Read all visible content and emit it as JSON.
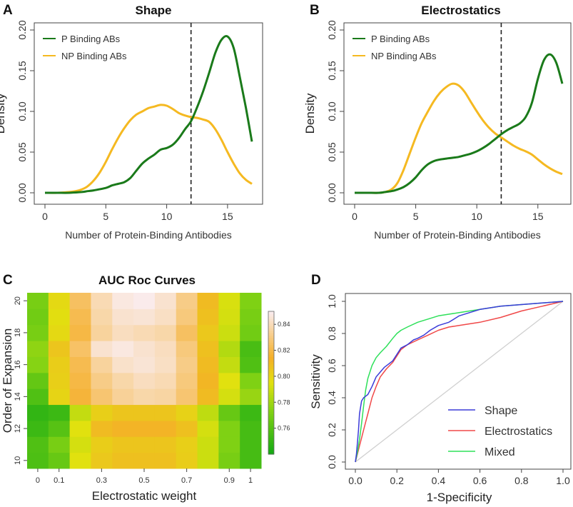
{
  "figure": {
    "panels": {
      "A": {
        "letter": "A",
        "title": "Shape"
      },
      "B": {
        "letter": "B",
        "title": "Electrostatics"
      },
      "C": {
        "letter": "C",
        "title": "AUC Roc Curves"
      },
      "D": {
        "letter": "D",
        "title": ""
      }
    }
  },
  "colors": {
    "p_binding": "#1a7a1a",
    "np_binding": "#f5b921",
    "shape": "#3b3bd9",
    "electrostatics": "#f04848",
    "mixed": "#2ee05a",
    "diagonal": "#d0d0d0"
  },
  "chart_data": [
    {
      "id": "A",
      "type": "line",
      "title": "Shape",
      "xlabel": "Number of Protein-Binding Antibodies",
      "ylabel": "Density",
      "xlim": [
        0,
        17
      ],
      "ylim": [
        0,
        0.2
      ],
      "xticks": [
        "0",
        "5",
        "10",
        "15"
      ],
      "yticks": [
        "0.00",
        "0.05",
        "0.10",
        "0.15",
        "0.20"
      ],
      "vline": 12,
      "legend": [
        "P Binding ABs",
        "NP Binding ABs"
      ],
      "series": [
        {
          "name": "P Binding ABs",
          "x": [
            0,
            1,
            2,
            3,
            3.5,
            4,
            5,
            5.5,
            6,
            6.5,
            7,
            7.5,
            8,
            8.5,
            9,
            9.5,
            10,
            10.5,
            11,
            11.5,
            12,
            12.5,
            13,
            13.5,
            14,
            14.5,
            15,
            15.5,
            16,
            16.5,
            17
          ],
          "y": [
            0,
            0,
            0,
            0.001,
            0.002,
            0.003,
            0.006,
            0.009,
            0.011,
            0.013,
            0.018,
            0.027,
            0.036,
            0.042,
            0.047,
            0.053,
            0.055,
            0.059,
            0.067,
            0.078,
            0.088,
            0.105,
            0.125,
            0.148,
            0.172,
            0.188,
            0.192,
            0.178,
            0.143,
            0.105,
            0.063
          ]
        },
        {
          "name": "NP Binding ABs",
          "x": [
            0,
            1,
            2,
            2.5,
            3,
            3.5,
            4,
            4.5,
            5,
            5.5,
            6,
            6.5,
            7,
            7.5,
            8,
            8.5,
            9,
            9.5,
            10,
            10.5,
            11,
            11.5,
            12,
            12.5,
            13,
            13.5,
            14,
            14.5,
            15,
            15.5,
            16,
            16.5,
            17
          ],
          "y": [
            0,
            0,
            0.001,
            0.002,
            0.004,
            0.008,
            0.015,
            0.025,
            0.038,
            0.053,
            0.067,
            0.079,
            0.089,
            0.096,
            0.1,
            0.104,
            0.106,
            0.108,
            0.107,
            0.103,
            0.098,
            0.095,
            0.093,
            0.092,
            0.09,
            0.087,
            0.078,
            0.065,
            0.05,
            0.036,
            0.024,
            0.016,
            0.011
          ]
        }
      ]
    },
    {
      "id": "B",
      "type": "line",
      "title": "Electrostatics",
      "xlabel": "Number of Protein-Binding Antibodies",
      "ylabel": "Density",
      "xlim": [
        0,
        17
      ],
      "ylim": [
        0,
        0.2
      ],
      "xticks": [
        "0",
        "5",
        "10",
        "15"
      ],
      "yticks": [
        "0.00",
        "0.05",
        "0.10",
        "0.15",
        "0.20"
      ],
      "vline": 12,
      "legend": [
        "P Binding ABs",
        "NP Binding ABs"
      ],
      "series": [
        {
          "name": "P Binding ABs",
          "x": [
            0,
            1,
            2,
            2.5,
            3,
            3.5,
            4,
            4.5,
            5,
            5.5,
            6,
            6.5,
            7,
            7.5,
            8,
            8.5,
            9,
            9.5,
            10,
            10.5,
            11,
            11.5,
            12,
            12.5,
            13,
            13.5,
            14,
            14.5,
            15,
            15.5,
            16,
            16.5,
            17
          ],
          "y": [
            0,
            0,
            0,
            0.001,
            0.002,
            0.004,
            0.007,
            0.012,
            0.019,
            0.028,
            0.035,
            0.039,
            0.041,
            0.042,
            0.043,
            0.044,
            0.046,
            0.048,
            0.051,
            0.055,
            0.06,
            0.066,
            0.072,
            0.077,
            0.081,
            0.085,
            0.093,
            0.11,
            0.14,
            0.163,
            0.17,
            0.16,
            0.134
          ]
        },
        {
          "name": "NP Binding ABs",
          "x": [
            0,
            1,
            2,
            2.5,
            3,
            3.5,
            4,
            4.5,
            5,
            5.5,
            6,
            6.5,
            7,
            7.5,
            8,
            8.5,
            9,
            9.5,
            10,
            10.5,
            11,
            11.5,
            12,
            12.5,
            13,
            13.5,
            14,
            14.5,
            15,
            15.5,
            16,
            16.5,
            17
          ],
          "y": [
            0,
            0,
            0,
            0.001,
            0.004,
            0.012,
            0.028,
            0.048,
            0.068,
            0.086,
            0.1,
            0.113,
            0.123,
            0.13,
            0.134,
            0.132,
            0.124,
            0.112,
            0.1,
            0.089,
            0.08,
            0.073,
            0.068,
            0.063,
            0.058,
            0.054,
            0.051,
            0.047,
            0.041,
            0.035,
            0.03,
            0.026,
            0.023
          ]
        }
      ]
    },
    {
      "id": "C",
      "type": "heatmap",
      "title": "AUC Roc Curves",
      "xlabel": "Electrostatic weight",
      "ylabel": "Order of Expansion",
      "xticks": [
        "0",
        "0.1",
        "0.3",
        "0.5",
        "0.7",
        "0.9",
        "1"
      ],
      "yticks": [
        "10",
        "12",
        "14",
        "16",
        "18",
        "20"
      ],
      "colorbar_ticks": [
        "0.76",
        "0.78",
        "0.80",
        "0.82",
        "0.84"
      ],
      "clim": [
        0.74,
        0.85
      ],
      "x_values": [
        0,
        0.1,
        0.2,
        0.3,
        0.4,
        0.5,
        0.6,
        0.7,
        0.8,
        0.9,
        1
      ],
      "y_values": [
        10,
        11,
        12,
        13,
        14,
        15,
        16,
        17,
        18,
        19,
        20
      ],
      "values": [
        [
          0.757,
          0.765,
          0.795,
          0.805,
          0.808,
          0.808,
          0.808,
          0.803,
          0.79,
          0.77,
          0.755
        ],
        [
          0.758,
          0.77,
          0.792,
          0.803,
          0.806,
          0.806,
          0.806,
          0.802,
          0.79,
          0.772,
          0.755
        ],
        [
          0.752,
          0.76,
          0.795,
          0.81,
          0.813,
          0.813,
          0.813,
          0.808,
          0.792,
          0.772,
          0.755
        ],
        [
          0.749,
          0.752,
          0.788,
          0.802,
          0.806,
          0.806,
          0.806,
          0.801,
          0.787,
          0.765,
          0.752
        ],
        [
          0.758,
          0.8,
          0.818,
          0.828,
          0.835,
          0.838,
          0.837,
          0.828,
          0.81,
          0.792,
          0.778
        ],
        [
          0.764,
          0.802,
          0.82,
          0.832,
          0.838,
          0.842,
          0.84,
          0.83,
          0.812,
          0.795,
          0.772
        ],
        [
          0.774,
          0.803,
          0.822,
          0.836,
          0.844,
          0.846,
          0.843,
          0.832,
          0.81,
          0.788,
          0.758
        ],
        [
          0.776,
          0.806,
          0.826,
          0.845,
          0.848,
          0.845,
          0.842,
          0.83,
          0.808,
          0.784,
          0.756
        ],
        [
          0.77,
          0.798,
          0.82,
          0.836,
          0.842,
          0.84,
          0.838,
          0.825,
          0.805,
          0.79,
          0.768
        ],
        [
          0.768,
          0.796,
          0.822,
          0.838,
          0.845,
          0.846,
          0.843,
          0.83,
          0.808,
          0.792,
          0.77
        ],
        [
          0.77,
          0.798,
          0.825,
          0.84,
          0.848,
          0.85,
          0.845,
          0.832,
          0.81,
          0.793,
          0.772
        ]
      ]
    },
    {
      "id": "D",
      "type": "line",
      "title": "",
      "xlabel": "1-Specificity",
      "ylabel": "Sensitivity",
      "xlim": [
        0,
        1
      ],
      "ylim": [
        0,
        1
      ],
      "xticks": [
        "0.0",
        "0.2",
        "0.4",
        "0.6",
        "0.8",
        "1.0"
      ],
      "yticks": [
        "0.0",
        "0.2",
        "0.4",
        "0.6",
        "0.8",
        "1.0"
      ],
      "legend": [
        "Shape",
        "Electrostatics",
        "Mixed"
      ],
      "series": [
        {
          "name": "Shape",
          "x": [
            0,
            0.005,
            0.01,
            0.015,
            0.02,
            0.03,
            0.04,
            0.05,
            0.06,
            0.08,
            0.1,
            0.12,
            0.14,
            0.16,
            0.18,
            0.2,
            0.22,
            0.25,
            0.28,
            0.3,
            0.33,
            0.36,
            0.4,
            0.45,
            0.5,
            0.55,
            0.6,
            0.7,
            0.8,
            0.9,
            1.0
          ],
          "y": [
            0,
            0.05,
            0.12,
            0.2,
            0.3,
            0.38,
            0.4,
            0.41,
            0.42,
            0.47,
            0.53,
            0.56,
            0.59,
            0.61,
            0.63,
            0.67,
            0.71,
            0.73,
            0.76,
            0.77,
            0.79,
            0.82,
            0.85,
            0.87,
            0.91,
            0.93,
            0.95,
            0.97,
            0.98,
            0.99,
            1.0
          ]
        },
        {
          "name": "Electrostatics",
          "x": [
            0,
            0.01,
            0.02,
            0.03,
            0.04,
            0.05,
            0.06,
            0.08,
            0.1,
            0.12,
            0.15,
            0.18,
            0.2,
            0.22,
            0.25,
            0.3,
            0.35,
            0.4,
            0.45,
            0.5,
            0.55,
            0.6,
            0.7,
            0.8,
            0.9,
            1.0
          ],
          "y": [
            0,
            0.05,
            0.1,
            0.15,
            0.2,
            0.25,
            0.3,
            0.4,
            0.47,
            0.53,
            0.58,
            0.62,
            0.66,
            0.7,
            0.73,
            0.76,
            0.79,
            0.82,
            0.84,
            0.85,
            0.86,
            0.87,
            0.9,
            0.94,
            0.97,
            1.0
          ]
        },
        {
          "name": "Mixed",
          "x": [
            0,
            0.01,
            0.02,
            0.03,
            0.04,
            0.05,
            0.06,
            0.08,
            0.1,
            0.12,
            0.15,
            0.18,
            0.2,
            0.22,
            0.25,
            0.3,
            0.35,
            0.4,
            0.45,
            0.5,
            0.55,
            0.6,
            0.7,
            0.8,
            0.9,
            1.0
          ],
          "y": [
            0,
            0.06,
            0.14,
            0.24,
            0.35,
            0.45,
            0.52,
            0.6,
            0.65,
            0.68,
            0.72,
            0.77,
            0.8,
            0.82,
            0.84,
            0.87,
            0.89,
            0.91,
            0.92,
            0.93,
            0.94,
            0.95,
            0.97,
            0.98,
            0.99,
            1.0
          ]
        }
      ]
    }
  ]
}
